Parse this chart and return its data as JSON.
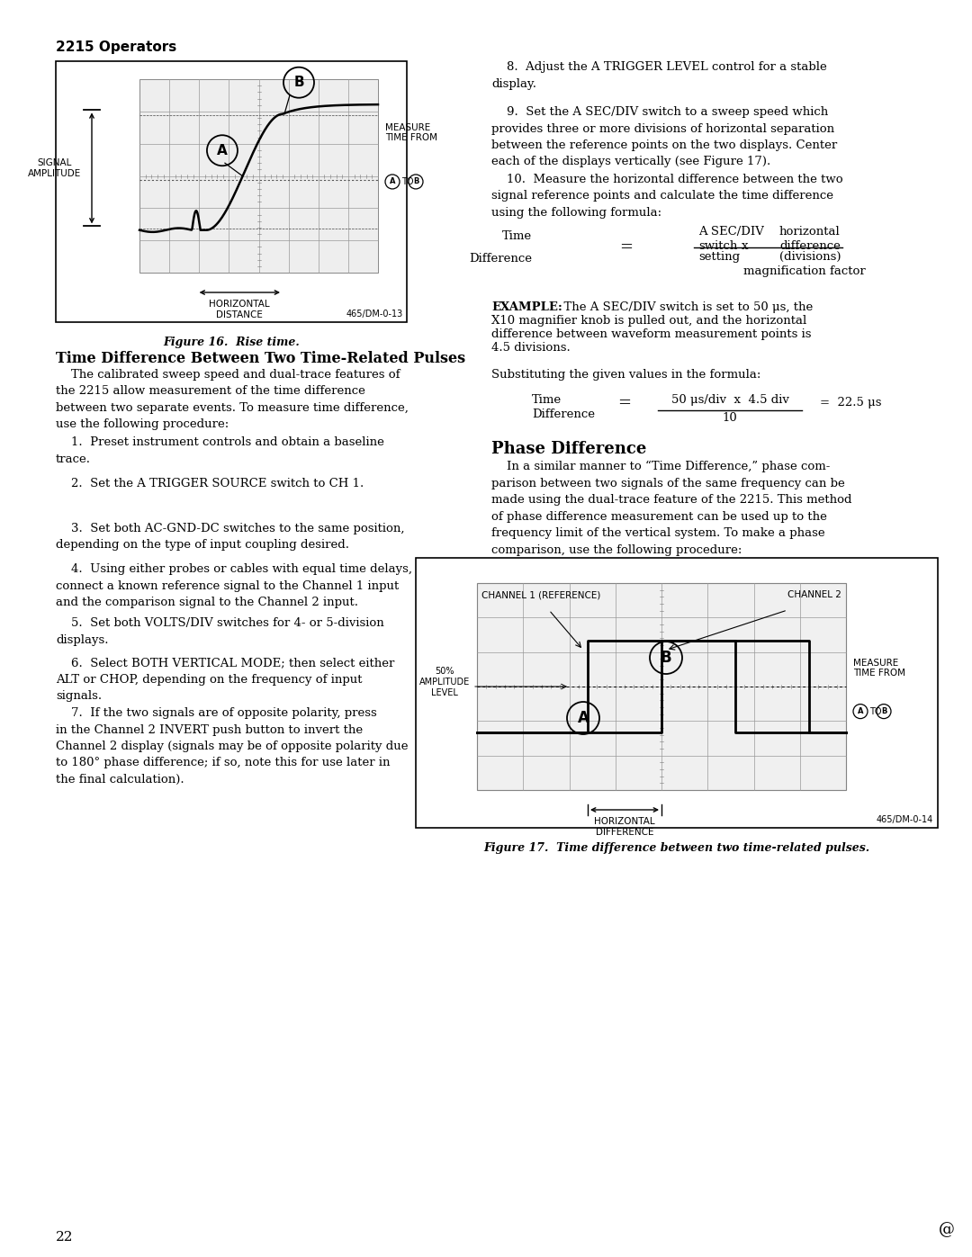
{
  "bg_color": "#ffffff",
  "page_number": "22",
  "header": "2215 Operators",
  "fig16_caption": "Figure 16.  Rise time.",
  "fig16_id": "465/DM-0-13",
  "fig17_caption": "Figure 17.  Time difference between two time-related pulses.",
  "fig17_id": "465/DM-0-14",
  "copyright": "@"
}
